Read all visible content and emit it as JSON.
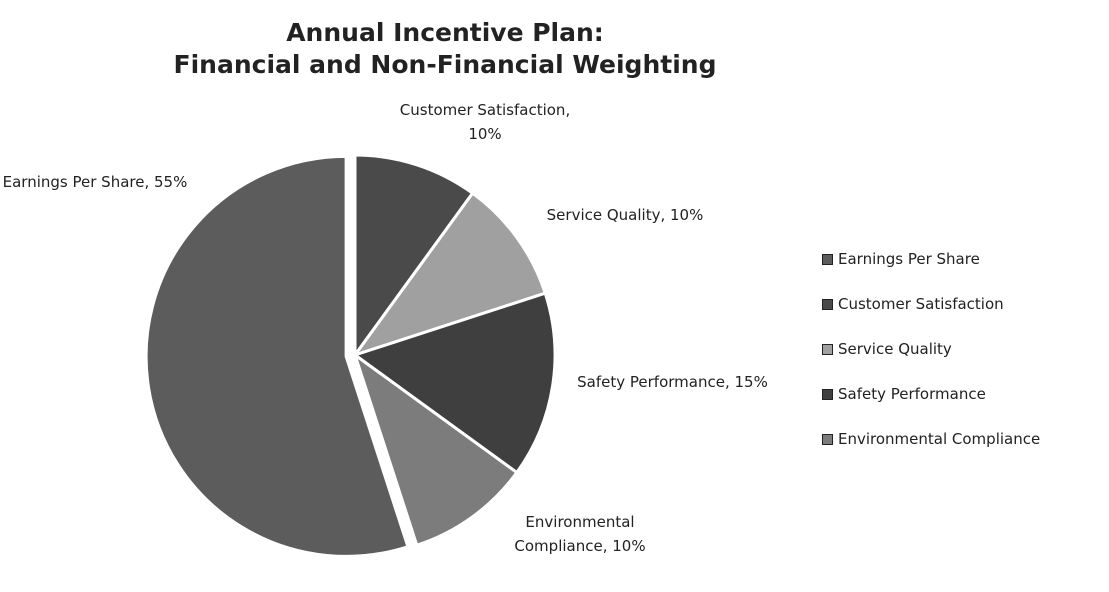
{
  "chart_data": {
    "type": "pie",
    "title": [
      "Annual Incentive Plan:",
      "Financial and Non-Financial Weighting"
    ],
    "categories": [
      "Earnings Per Share",
      "Customer Satisfaction",
      "Service Quality",
      "Safety Performance",
      "Environmental Compliance"
    ],
    "values": [
      55,
      10,
      10,
      15,
      10
    ],
    "value_labels": [
      "Earnings Per Share, 55%",
      "Customer Satisfaction, 10%",
      "Service Quality, 10%",
      "Safety Performance, 15%",
      "Environmental Compliance, 10%"
    ],
    "colors": [
      "#5c5c5c",
      "#4a4a4a",
      "#a0a0a0",
      "#3f3f3f",
      "#7c7c7c"
    ],
    "start_angle": 162,
    "exploded": [
      0
    ],
    "legend": "right"
  }
}
